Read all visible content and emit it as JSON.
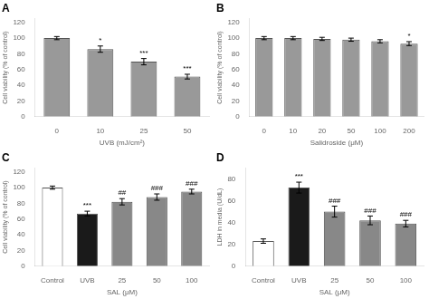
{
  "chart_data": [
    {
      "type": "bar",
      "title": "A",
      "categories": [
        "0",
        "10",
        "25",
        "50"
      ],
      "values": [
        100,
        86,
        70,
        51
      ],
      "errors": [
        2,
        4,
        4,
        3
      ],
      "color": "#999999",
      "xlabel": "UVB (mJ/cm²)",
      "ylabel": "Cell viability (% of control)",
      "ylim": [
        0,
        125
      ],
      "yticks": [
        0,
        20,
        40,
        60,
        80,
        100,
        120
      ],
      "grid": false,
      "annotations": [
        {
          "x": "10",
          "text": "*"
        },
        {
          "x": "25",
          "text": "***"
        },
        {
          "x": "50",
          "text": "***"
        }
      ]
    },
    {
      "type": "bar",
      "title": "B",
      "categories": [
        "0",
        "10",
        "20",
        "50",
        "100",
        "200"
      ],
      "values": [
        100,
        100,
        99,
        98,
        96,
        93
      ],
      "errors": [
        2,
        2,
        2,
        2,
        2,
        2.5
      ],
      "color": "#999999",
      "xlabel": "Salidroside (μM)",
      "ylabel": "Cell viability (% of control)",
      "ylim": [
        0,
        125
      ],
      "yticks": [
        0,
        20,
        40,
        60,
        80,
        100,
        120
      ],
      "grid": false,
      "annotations": [
        {
          "x": "200",
          "text": "*"
        }
      ]
    },
    {
      "type": "bar",
      "title": "C",
      "categories": [
        "Control",
        "UVB",
        "25",
        "50",
        "100"
      ],
      "values": [
        100,
        67,
        82,
        88,
        95
      ],
      "errors": [
        2,
        3,
        4,
        4,
        3
      ],
      "colors": [
        "#ffffff",
        "#1a1a1a",
        "#888888",
        "#888888",
        "#888888"
      ],
      "xlabel": "SAL (μM)",
      "ylabel": "Cell viability (% of control)",
      "ylim": [
        0,
        125
      ],
      "yticks": [
        0,
        20,
        40,
        60,
        80,
        100,
        120
      ],
      "grid": false,
      "annotations": [
        {
          "x": "UVB",
          "text": "***"
        },
        {
          "x": "25",
          "text": "##"
        },
        {
          "x": "50",
          "text": "###"
        },
        {
          "x": "100",
          "text": "###"
        }
      ]
    },
    {
      "type": "bar",
      "title": "D",
      "categories": [
        "Control",
        "UVB",
        "25",
        "50",
        "100"
      ],
      "values": [
        23,
        72,
        50,
        42,
        39
      ],
      "errors": [
        2,
        5,
        5,
        4,
        3
      ],
      "colors": [
        "#ffffff",
        "#1a1a1a",
        "#888888",
        "#888888",
        "#888888"
      ],
      "xlabel": "SAL (μM)",
      "ylabel": "LDH in media (U/dL)",
      "ylim": [
        0,
        90
      ],
      "yticks": [
        0,
        20,
        40,
        60,
        80
      ],
      "grid": false,
      "annotations": [
        {
          "x": "UVB",
          "text": "***"
        },
        {
          "x": "25",
          "text": "###"
        },
        {
          "x": "50",
          "text": "###"
        },
        {
          "x": "100",
          "text": "###"
        }
      ]
    }
  ]
}
